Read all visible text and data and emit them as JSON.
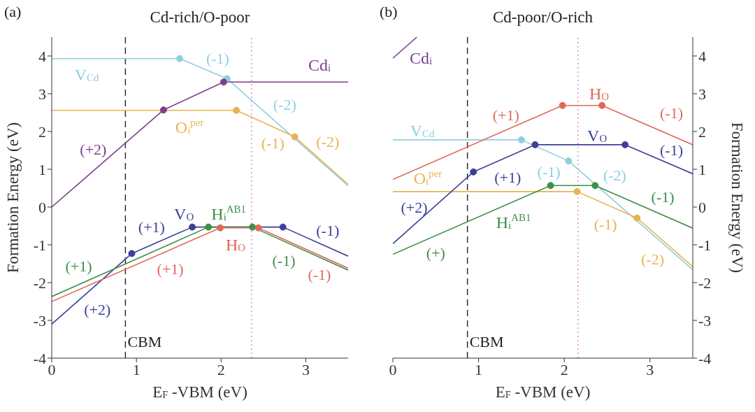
{
  "chart_data": [
    {
      "type": "line",
      "title": "Cd-rich/O-poor",
      "xlabel": "E$_{F}$ -VBM (eV)",
      "ylabel": "Formation Energy (eV)",
      "xlim": [
        0,
        3.5
      ],
      "ylim": [
        -4,
        4.5
      ],
      "xticks": [
        0,
        1,
        2,
        3
      ],
      "yticks": [
        -4,
        -3,
        -2,
        -1,
        0,
        1,
        2,
        3,
        4
      ],
      "series": [
        {
          "name": "V$_{Cd}$",
          "color": "#8ecfe0",
          "marker": "circle",
          "x": [
            0,
            1.51,
            2.07,
            3.5
          ],
          "values": [
            3.93,
            3.93,
            3.4,
            0.56
          ]
        },
        {
          "name": "Cd$_{i}$",
          "color": "#7b3f8c",
          "marker": "circle",
          "x": [
            0,
            1.32,
            2.03,
            3.5
          ],
          "values": [
            0,
            2.57,
            3.31,
            3.31
          ]
        },
        {
          "name": "O$_{i}$$^{per}$",
          "color": "#e8b450",
          "marker": "circle",
          "x": [
            0,
            2.18,
            2.87,
            3.5
          ],
          "values": [
            2.56,
            2.56,
            1.86,
            0.6
          ]
        },
        {
          "name": "V$_{O}$",
          "color": "#3d3f98",
          "marker": "circle",
          "x": [
            0,
            0.945,
            1.66,
            2.73,
            3.5
          ],
          "values": [
            -3.1,
            -1.23,
            -0.53,
            -0.53,
            -1.3
          ]
        },
        {
          "name": "H$_{i}$$^{AB1}$",
          "color": "#3f8f4a",
          "marker": "circle",
          "x": [
            0,
            1.85,
            2.37,
            3.5
          ],
          "values": [
            -2.37,
            -0.53,
            -0.53,
            -1.67
          ]
        },
        {
          "name": "H$_{O}$",
          "color": "#e0695a",
          "marker": "circle",
          "x": [
            0,
            1.99,
            2.44,
            3.5
          ],
          "values": [
            -2.5,
            -0.55,
            -0.55,
            -1.62
          ]
        }
      ],
      "ref_lines": [
        {
          "axis": "x",
          "value": 0.87,
          "label": "CBM",
          "color": "#222222",
          "line_style": "dashed"
        },
        {
          "axis": "x",
          "value": 2.36,
          "color": "#d98bb5",
          "line_style": "dotted"
        }
      ],
      "annotations": [
        "(a)",
        "(-1)",
        "(-2)",
        "(+2)",
        "(-1)",
        "(-2)",
        "(+1)",
        "(+1)",
        "(+1)",
        "(+2)",
        "(-1)",
        "(-1)",
        "(-1)"
      ]
    },
    {
      "type": "line",
      "title": "Cd-poor/O-rich",
      "xlabel": "E$_{F}$ -VBM (eV)",
      "ylabel": "Formation Energy (eV)",
      "xlim": [
        0,
        3.5
      ],
      "ylim": [
        -4,
        4.5
      ],
      "xticks": [
        0,
        1,
        2,
        3
      ],
      "yticks": [
        -4,
        -3,
        -2,
        -1,
        0,
        1,
        2,
        3,
        4
      ],
      "series": [
        {
          "name": "V$_{Cd}$",
          "color": "#8ecfe0",
          "marker": "circle",
          "x": [
            0,
            1.5,
            2.05,
            3.5
          ],
          "values": [
            1.78,
            1.78,
            1.22,
            -1.66
          ]
        },
        {
          "name": "Cd$_{i}$",
          "color": "#7b3f8c",
          "x": [
            0,
            0.28
          ],
          "values": [
            3.94,
            4.5
          ]
        },
        {
          "name": "O$_{i}$$^{per}$",
          "color": "#e8b450",
          "marker": "circle",
          "x": [
            0,
            2.15,
            2.85,
            3.5
          ],
          "values": [
            0.41,
            0.41,
            -0.29,
            -1.58
          ]
        },
        {
          "name": "V$_{O}$",
          "color": "#3d3f98",
          "marker": "circle",
          "x": [
            0,
            0.94,
            1.66,
            2.71,
            3.5
          ],
          "values": [
            -0.97,
            0.93,
            1.65,
            1.65,
            0.88
          ]
        },
        {
          "name": "H$_{i}$$^{AB1}$",
          "color": "#3f8f4a",
          "marker": "circle",
          "x": [
            0,
            1.84,
            2.36,
            3.5
          ],
          "values": [
            -1.25,
            0.57,
            0.57,
            -0.56
          ]
        },
        {
          "name": "H$_{O}$",
          "color": "#e0695a",
          "marker": "circle",
          "x": [
            0,
            1.98,
            2.44,
            3.5
          ],
          "values": [
            0.73,
            2.69,
            2.69,
            1.65
          ]
        }
      ],
      "ref_lines": [
        {
          "axis": "x",
          "value": 0.87,
          "label": "CBM",
          "color": "#222222",
          "line_style": "dashed"
        },
        {
          "axis": "x",
          "value": 2.16,
          "color": "#d98bb5",
          "line_style": "dotted"
        }
      ],
      "annotations": [
        "(b)",
        "(+1)",
        "(-1)",
        "(-1)",
        "(+1)",
        "(-1)",
        "(-2)",
        "(-1)",
        "(+2)",
        "(+)",
        "(-1)",
        "(-2)"
      ]
    }
  ]
}
